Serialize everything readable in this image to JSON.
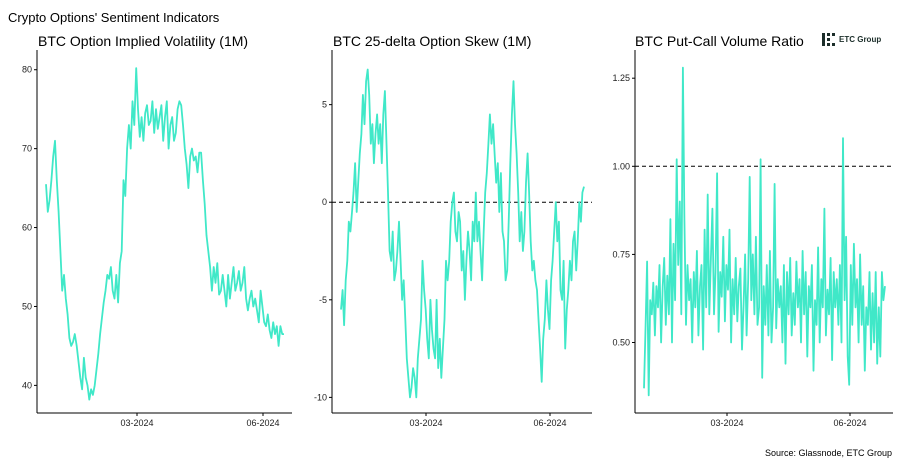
{
  "header": {
    "title": "Crypto Options' Sentiment Indicators"
  },
  "footer": {
    "source": "Source: Glassnode, ETC Group"
  },
  "logo": {
    "text": "ETC Group"
  },
  "colors": {
    "line": "#40e8c8",
    "axis": "#000000",
    "reference": "#000000"
  },
  "chart_data": [
    {
      "type": "line",
      "title": "BTC Option Implied Volatility (1M)",
      "xlabel": "",
      "ylabel": "",
      "x_tick_labels": [
        "03-2024",
        "06-2024"
      ],
      "y_ticks": [
        40,
        50,
        60,
        70,
        80
      ],
      "ylim": [
        36.5,
        82.5
      ],
      "grid": false,
      "series": [
        {
          "values": [
            65.5,
            62,
            63.5,
            66,
            69,
            71,
            66,
            62,
            57,
            52,
            54,
            51,
            49,
            46,
            45,
            45.5,
            46.5,
            45,
            43,
            41,
            39.5,
            43.5,
            41,
            40,
            38.2,
            39.5,
            38.8,
            40,
            42,
            44,
            46.5,
            48.5,
            50.5,
            52,
            54,
            53.5,
            55,
            52,
            51,
            54,
            50.5,
            55.5,
            57,
            66,
            64,
            70,
            73,
            70,
            76,
            73,
            80.2,
            75,
            71.5,
            74,
            71,
            74.5,
            75.5,
            73,
            73.5,
            76,
            72,
            75,
            72.5,
            74,
            75.5,
            71,
            74,
            76,
            70,
            73,
            74,
            71,
            72,
            75,
            76,
            75.5,
            73,
            70,
            68,
            65,
            69,
            70,
            68.5,
            69,
            67,
            69.5,
            69.5,
            66,
            63,
            59,
            57,
            55,
            52,
            55,
            53,
            55.5,
            51.5,
            52,
            54,
            52,
            50,
            54,
            51,
            53,
            55,
            52,
            53,
            54.5,
            52,
            53,
            55,
            51,
            49.5,
            51,
            52,
            50,
            51,
            49.5,
            48,
            52,
            50,
            48,
            47.5,
            49,
            47,
            46,
            48,
            46.5,
            47.5,
            45,
            47.5,
            46.5,
            46.5
          ]
        }
      ]
    },
    {
      "type": "line",
      "title": "BTC 25-delta Option Skew (1M)",
      "xlabel": "",
      "ylabel": "",
      "x_tick_labels": [
        "03-2024",
        "06-2024"
      ],
      "y_ticks": [
        -10,
        -5,
        0,
        5
      ],
      "ylim": [
        -10.8,
        7.8
      ],
      "reference_line": 0,
      "grid": false,
      "series": [
        {
          "values": [
            -5.5,
            -4.5,
            -6.3,
            -4,
            -3,
            -1,
            -1.5,
            -0.5,
            0.5,
            2,
            -0.5,
            1,
            2.5,
            3.5,
            5.5,
            4,
            6.2,
            6.8,
            5.5,
            3,
            4,
            2,
            3.5,
            4.5,
            3,
            4,
            2,
            4.5,
            5.7,
            3,
            0.5,
            -2.5,
            -3,
            -1.5,
            -4,
            -3.5,
            -2.5,
            -1,
            -3,
            -5,
            -4,
            -6,
            -8,
            -9,
            -10,
            -9.5,
            -8.5,
            -9,
            -10,
            -8,
            -7,
            -6,
            -3,
            -4.5,
            -5.5,
            -7,
            -8,
            -5,
            -6.5,
            -7.5,
            -8,
            -5,
            -8.5,
            -7,
            -9,
            -7.5,
            -6,
            -3,
            -4,
            -3,
            -1,
            0,
            0.5,
            -1.5,
            -2,
            -0.5,
            -1,
            -3.5,
            -2.5,
            -5,
            -3,
            -1.5,
            -2.5,
            -4,
            -1,
            -2,
            0.5,
            -2,
            -1,
            -2.5,
            -4,
            -1.5,
            0.5,
            1.5,
            3,
            4.5,
            3,
            4,
            2.5,
            1,
            2,
            -0.5,
            1.5,
            -1.5,
            -2,
            -4,
            -3.5,
            -1,
            2,
            4.5,
            6.2,
            4,
            2.5,
            0.5,
            -2,
            -0.5,
            -2.5,
            -1.5,
            1,
            2.5,
            0.5,
            -2,
            -3.5,
            -3,
            -4,
            -4.5,
            -6,
            -7.5,
            -9.2,
            -7,
            -6,
            -4,
            -5.5,
            -6.5,
            -4,
            -3,
            -1.5,
            0,
            -2,
            -1,
            -4.5,
            -5,
            -3,
            -7.5,
            -5.5,
            -4.5,
            -3,
            -4,
            -2,
            -1.5,
            -3.5,
            -2,
            0,
            -1,
            0.5,
            0.8
          ]
        }
      ]
    },
    {
      "type": "line",
      "title": "BTC Put-Call Volume Ratio",
      "xlabel": "",
      "ylabel": "",
      "x_tick_labels": [
        "03-2024",
        "06-2024"
      ],
      "y_ticks": [
        0.5,
        0.75,
        1.0,
        1.25
      ],
      "y_tick_labels": [
        "0.50",
        "0.75",
        "1.00",
        "1.25"
      ],
      "ylim": [
        0.3,
        1.33
      ],
      "reference_line": 1.0,
      "grid": false,
      "series": [
        {
          "values": [
            0.37,
            0.55,
            0.73,
            0.35,
            0.62,
            0.58,
            0.67,
            0.52,
            0.66,
            0.6,
            0.72,
            0.5,
            0.66,
            0.74,
            0.55,
            0.69,
            0.58,
            0.85,
            0.5,
            0.78,
            0.62,
            1.02,
            0.72,
            0.9,
            0.58,
            1.28,
            0.85,
            0.55,
            0.72,
            0.62,
            0.68,
            0.5,
            0.7,
            0.6,
            0.76,
            0.52,
            0.66,
            0.72,
            0.48,
            0.82,
            0.6,
            0.92,
            0.58,
            0.74,
            0.88,
            0.58,
            0.7,
            0.98,
            0.53,
            0.7,
            0.63,
            0.8,
            0.56,
            0.72,
            0.65,
            0.82,
            0.5,
            0.68,
            0.58,
            0.74,
            0.56,
            0.66,
            0.71,
            0.48,
            0.6,
            0.75,
            0.52,
            0.68,
            0.97,
            0.62,
            0.75,
            0.58,
            0.8,
            0.55,
            0.6,
            1.02,
            0.4,
            0.66,
            0.55,
            0.72,
            0.52,
            0.76,
            0.5,
            0.6,
            0.95,
            0.54,
            0.68,
            0.6,
            0.66,
            0.5,
            0.72,
            0.44,
            0.7,
            0.58,
            0.74,
            0.52,
            0.64,
            0.55,
            0.73,
            0.6,
            0.68,
            0.5,
            0.76,
            0.58,
            0.7,
            0.46,
            0.66,
            0.6,
            0.72,
            0.42,
            0.62,
            0.55,
            0.77,
            0.5,
            0.68,
            0.6,
            0.88,
            0.52,
            0.65,
            0.58,
            0.74,
            0.45,
            0.7,
            0.6,
            0.68,
            0.55,
            0.72,
            0.5,
            1.08,
            0.62,
            0.8,
            0.46,
            0.38,
            0.72,
            0.55,
            0.78,
            0.6,
            0.68,
            0.5,
            0.75,
            0.55,
            0.66,
            0.42,
            0.6,
            0.55,
            0.7,
            0.48,
            0.64,
            0.5,
            0.7,
            0.44,
            0.6,
            0.46,
            0.7,
            0.62,
            0.66
          ]
        }
      ]
    }
  ]
}
